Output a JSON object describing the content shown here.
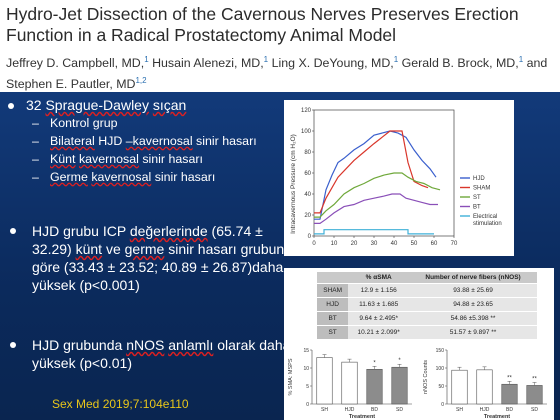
{
  "header": {
    "title": "Hydro-Jet Dissection of the Cavernous Nerves Preserves Erection Function in a Radical Prostatectomy Animal Model",
    "authors": [
      {
        "name": "Jeffrey D. Campbell, MD,",
        "sup": "1"
      },
      {
        "name": "Husain Alenezi, MD,",
        "sup": "1"
      },
      {
        "name": "Ling X. DeYoung, MD,",
        "sup": "1"
      },
      {
        "name": "Gerald B. Brock, MD,",
        "sup": "1"
      },
      {
        "name": "and Stephen E. Pautler, MD",
        "sup": "1,2"
      }
    ]
  },
  "bullets": {
    "first": "32 Sprague-Dawley sıçan",
    "sub": [
      "Kontrol grup",
      "Bilateral HJD –kavernosal sinir hasarı",
      "Künt kavernosal sinir hasarı",
      "Germe kavernosal sinir hasarı"
    ],
    "second": "HJD grubu ICP değerlerinde (65.74 ± 32.29) künt ve germe sinir hasarı grubuna göre (33.43 ± 23.52; 40.89 ± 26.87)daha yüksek (p<0.001)",
    "third": "HJD grubunda nNOS anlamlı olarak daha yüksek (p<0.01)"
  },
  "reference": "Sex Med 2019;7:104e110",
  "chart_data": [
    {
      "type": "line",
      "ylabel": "Intracavernous Pressure (cm H₂O)",
      "xlabel": "",
      "x": [
        0,
        10,
        20,
        30,
        40,
        50,
        60,
        70
      ],
      "xlim": [
        0,
        70
      ],
      "ylim": [
        0,
        120
      ],
      "xticks": [
        "0",
        "10",
        "20",
        "30",
        "40",
        "50",
        "60",
        "70"
      ],
      "yticks": [
        "0",
        "20",
        "40",
        "60",
        "80",
        "100",
        "120"
      ],
      "series": [
        {
          "name": "HJD",
          "color": "#3a5fcd",
          "points": [
            [
              0,
              16
            ],
            [
              3,
              16
            ],
            [
              6,
              44
            ],
            [
              9,
              58
            ],
            [
              12,
              70
            ],
            [
              15,
              74
            ],
            [
              20,
              82
            ],
            [
              25,
              88
            ],
            [
              30,
              96
            ],
            [
              34,
              98
            ],
            [
              38,
              100
            ],
            [
              42,
              98
            ],
            [
              46,
              94
            ],
            [
              50,
              82
            ],
            [
              54,
              72
            ],
            [
              58,
              64
            ],
            [
              61,
              56
            ]
          ]
        },
        {
          "name": "SHAM",
          "color": "#d9362b",
          "points": [
            [
              0,
              22
            ],
            [
              3,
              22
            ],
            [
              6,
              36
            ],
            [
              9,
              46
            ],
            [
              12,
              56
            ],
            [
              16,
              64
            ],
            [
              20,
              72
            ],
            [
              25,
              80
            ],
            [
              30,
              88
            ],
            [
              34,
              94
            ],
            [
              38,
              100
            ],
            [
              42,
              100
            ],
            [
              44,
              100
            ],
            [
              47,
              70
            ],
            [
              50,
              52
            ],
            [
              54,
              48
            ],
            [
              57,
              46
            ]
          ]
        },
        {
          "name": "ST",
          "color": "#6fa83a",
          "points": [
            [
              0,
              18
            ],
            [
              3,
              18
            ],
            [
              6,
              24
            ],
            [
              10,
              30
            ],
            [
              15,
              40
            ],
            [
              20,
              46
            ],
            [
              25,
              50
            ],
            [
              30,
              55
            ],
            [
              35,
              58
            ],
            [
              40,
              60
            ],
            [
              44,
              60
            ],
            [
              47,
              56
            ],
            [
              51,
              52
            ],
            [
              55,
              50
            ],
            [
              59,
              46
            ],
            [
              63,
              44
            ]
          ]
        },
        {
          "name": "BT",
          "color": "#8a4fb8",
          "points": [
            [
              0,
              12
            ],
            [
              3,
              12
            ],
            [
              6,
              16
            ],
            [
              10,
              22
            ],
            [
              15,
              28
            ],
            [
              20,
              30
            ],
            [
              25,
              34
            ],
            [
              30,
              36
            ],
            [
              35,
              38
            ],
            [
              39,
              40
            ],
            [
              43,
              40
            ],
            [
              46,
              36
            ],
            [
              50,
              34
            ],
            [
              54,
              32
            ],
            [
              58,
              30
            ],
            [
              62,
              30
            ]
          ]
        },
        {
          "name": "Electrical stimulation",
          "color": "#3fb0d8",
          "points": [
            [
              0,
              2
            ],
            [
              5,
              2
            ],
            [
              5,
              6
            ],
            [
              47,
              6
            ],
            [
              47,
              2
            ],
            [
              60,
              2
            ]
          ]
        }
      ]
    },
    {
      "type": "table",
      "columns": [
        "",
        "% αSMA",
        "Number of nerve fibers (nNOS)"
      ],
      "rows": [
        [
          "SHAM",
          "12.9 ± 1.156",
          "93.88 ± 25.69"
        ],
        [
          "HJD",
          "11.63 ± 1.685",
          "94.88 ± 23.65"
        ],
        [
          "BT",
          "9.64 ± 2.495*",
          "54.86 ±5.398 **"
        ],
        [
          "ST",
          "10.21 ± 2.099*",
          "51.57 ± 9.897 **"
        ]
      ]
    },
    {
      "type": "bar",
      "ylabel": "% SMA: MSPS",
      "xlabel": "Treatment",
      "categories": [
        "SH",
        "HJD",
        "BD",
        "SD"
      ],
      "values": [
        12.9,
        11.63,
        9.64,
        10.21
      ],
      "ylim": [
        0,
        15
      ],
      "yticks": [
        "0",
        "5",
        "10",
        "15"
      ],
      "annotations": [
        "",
        "",
        "*",
        "*"
      ]
    },
    {
      "type": "bar",
      "ylabel": "nNOS Counts",
      "xlabel": "Treatment",
      "categories": [
        "SH",
        "HJD",
        "BD",
        "SD"
      ],
      "values": [
        93.88,
        94.88,
        54.86,
        51.57
      ],
      "ylim": [
        0,
        150
      ],
      "yticks": [
        "0",
        "50",
        "100",
        "150"
      ],
      "annotations": [
        "",
        "",
        "**",
        "**"
      ]
    }
  ]
}
